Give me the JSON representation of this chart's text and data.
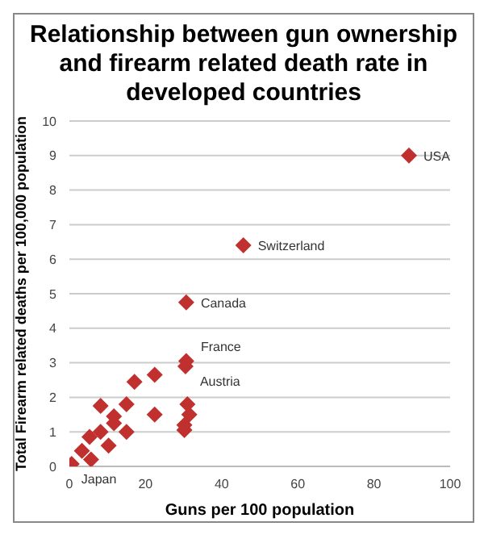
{
  "chart_data": {
    "type": "scatter",
    "title": "Relationship between gun ownership and firearm related death rate in developed countries",
    "xlabel": "Guns per 100 population",
    "ylabel": "Total Firearm related deaths per 100,000 population",
    "x": [
      0.6,
      3.3,
      5.7,
      5.3,
      8.2,
      8.2,
      10.3,
      11.7,
      11.7,
      15,
      15,
      17.1,
      22.4,
      22.4,
      30.7,
      30.5,
      30.7,
      31,
      31.5,
      30.2,
      30.2,
      45.7,
      89.2
    ],
    "series": [
      {
        "color": "#c0302e",
        "values": [
          0.07,
          0.45,
          0.2,
          0.85,
          1.75,
          1.0,
          0.6,
          1.45,
          1.25,
          1.8,
          1.0,
          2.45,
          2.65,
          1.5,
          3.05,
          2.9,
          4.75,
          1.8,
          1.5,
          1.2,
          1.05,
          6.4,
          9.0
        ]
      }
    ],
    "xlim": [
      0,
      100
    ],
    "xticks": [
      0,
      20,
      40,
      60,
      80,
      100
    ],
    "ylim": [
      0,
      10
    ],
    "yticks": [
      0,
      1,
      2,
      3,
      4,
      5,
      6,
      7,
      8,
      9,
      10
    ],
    "grid": "y",
    "marker": "diamond",
    "legend": false,
    "annotations": [
      {
        "text": "Japan",
        "x": 0.6,
        "y": 0.07
      },
      {
        "text": "France",
        "x": 30.7,
        "y": 3.05
      },
      {
        "text": "Austria",
        "x": 30.5,
        "y": 2.9
      },
      {
        "text": "Canada",
        "x": 30.7,
        "y": 4.75
      },
      {
        "text": "Switzerland",
        "x": 45.7,
        "y": 6.4
      },
      {
        "text": "USA",
        "x": 89.2,
        "y": 9.0
      }
    ]
  }
}
